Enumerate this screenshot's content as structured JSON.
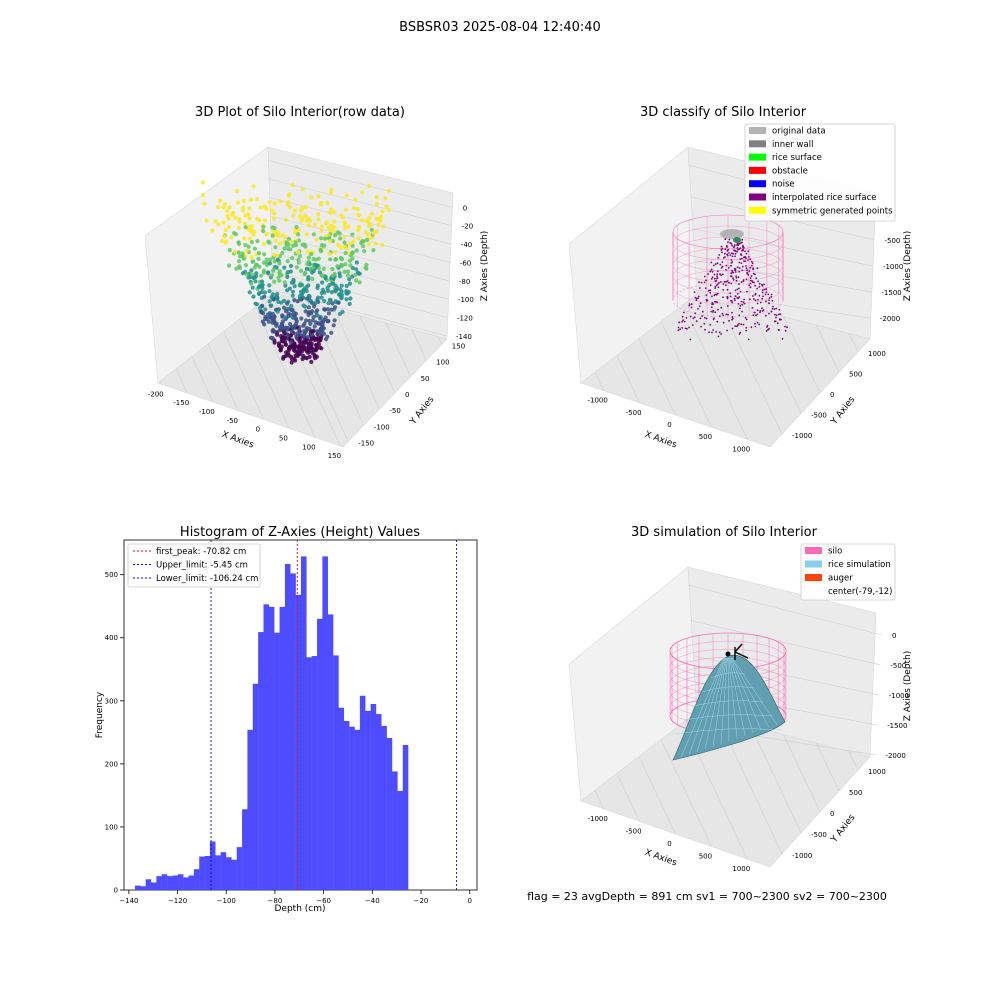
{
  "figure": {
    "suptitle": "BSBSR03 2025-08-04 12:40:40",
    "status_line": "flag = 23  avgDepth = 891 cm  sv1 = 700~2300  sv2 = 700~2300"
  },
  "chart_data": [
    {
      "type": "scatter",
      "title": "3D Plot of Silo Interior(row data)",
      "xlabel": "X Axies",
      "ylabel": "Y Axies",
      "zlabel": "Z Axies (Depth)",
      "x_ticks": [
        "-200",
        "-150",
        "-100",
        "-50",
        "0",
        "50",
        "100",
        "150"
      ],
      "y_ticks": [
        "-150",
        "-100",
        "-50",
        "0",
        "50",
        "100",
        "150"
      ],
      "z_ticks": [
        "0",
        "-20",
        "-40",
        "-60",
        "-80",
        "-100",
        "-120",
        "-140"
      ],
      "xlim": [
        -200,
        150
      ],
      "ylim": [
        -150,
        150
      ],
      "zlim": [
        -140,
        0
      ],
      "colormap": [
        "#440154",
        "#3b528b",
        "#21918c",
        "#5ec962",
        "#fde725"
      ],
      "grid": true
    },
    {
      "type": "scatter",
      "title": "3D classify of Silo Interior",
      "xlabel": "X Axies",
      "ylabel": "Y Axies",
      "zlabel": "Z Axies (Depth)",
      "x_ticks": [
        "-1000",
        "-500",
        "0",
        "500",
        "1000"
      ],
      "y_ticks": [
        "-1000",
        "-500",
        "0",
        "500",
        "1000"
      ],
      "z_ticks": [
        "0",
        "-500",
        "-1000",
        "-1500",
        "-2000"
      ],
      "legend_position": "top-right",
      "legend": [
        {
          "label": "original data",
          "color": "#b3b3b3"
        },
        {
          "label": "inner wall",
          "color": "#808080"
        },
        {
          "label": "rice surface",
          "color": "#00ff00"
        },
        {
          "label": "obstacle",
          "color": "#ff0000"
        },
        {
          "label": "noise",
          "color": "#0000ff"
        },
        {
          "label": "interpolated rice surface",
          "color": "#800080"
        },
        {
          "label": "symmetric generated points",
          "color": "#ffff00"
        }
      ],
      "grid": true
    },
    {
      "type": "bar",
      "title": "Histogram of Z-Axies (Height) Values",
      "xlabel": "Depth (cm)",
      "ylabel": "Frequency",
      "bar_color": "#4d4dff",
      "xlim": [
        -142,
        3
      ],
      "ylim": [
        0,
        555
      ],
      "x_ticks": [
        -140,
        -120,
        -100,
        -80,
        -60,
        -40,
        -20,
        0
      ],
      "y_ticks": [
        0,
        100,
        200,
        300,
        400,
        500
      ],
      "bin_width": 2.2,
      "bin_edges_start": -137.5,
      "values": [
        7,
        6,
        17,
        12,
        22,
        25,
        22,
        23,
        25,
        20,
        23,
        33,
        53,
        54,
        77,
        55,
        60,
        52,
        48,
        68,
        128,
        254,
        327,
        409,
        453,
        449,
        408,
        449,
        517,
        502,
        468,
        529,
        369,
        371,
        430,
        529,
        437,
        372,
        289,
        268,
        259,
        254,
        308,
        284,
        295,
        279,
        260,
        241,
        188,
        157,
        230
      ],
      "vlines": [
        {
          "label": "first_peak: -70.82 cm",
          "x": -70.82,
          "color": "#ff0000"
        },
        {
          "label": "Upper_limit: -5.45 cm",
          "x": -5.45,
          "color": "#0000ff"
        },
        {
          "label": "Lower_limit: -106.24 cm",
          "x": -106.24,
          "color": "#0000ff"
        }
      ],
      "legend_position": "top-left",
      "grid": false
    },
    {
      "type": "area",
      "title": "3D simulation of Silo Interior",
      "xlabel": "X Axies",
      "ylabel": "Y Axies",
      "zlabel": "Z Axies (Depth)",
      "x_ticks": [
        "-1000",
        "-500",
        "0",
        "500",
        "1000"
      ],
      "y_ticks": [
        "-1000",
        "-500",
        "0",
        "500",
        "1000"
      ],
      "z_ticks": [
        "0",
        "-500",
        "-1000",
        "-1500",
        "-2000"
      ],
      "legend_position": "top-right",
      "legend": [
        {
          "label": "silo",
          "color": "#ff69b4"
        },
        {
          "label": "rice simulation",
          "color": "#87ceeb"
        },
        {
          "label": "auger",
          "color": "#ff4500"
        },
        {
          "label": "center(-79,-12)",
          "color": ""
        }
      ],
      "grid": true
    }
  ]
}
